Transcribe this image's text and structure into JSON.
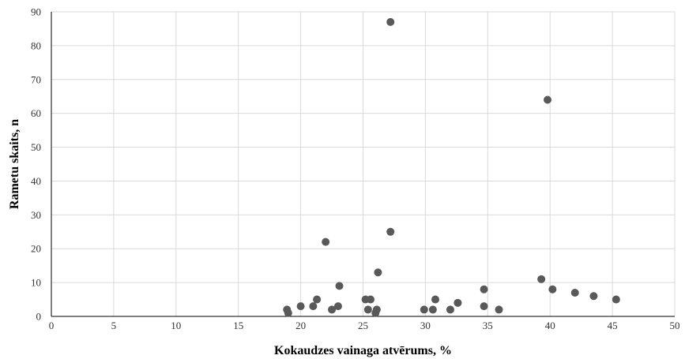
{
  "chart_data": {
    "type": "scatter",
    "title": "",
    "xlabel": "Kokaudzes vainaga atvērums, %",
    "ylabel": "Rametu skaits, n",
    "xlim": [
      0,
      50
    ],
    "ylim": [
      0,
      90
    ],
    "x_ticks": [
      0,
      5,
      10,
      15,
      20,
      25,
      30,
      35,
      40,
      45,
      50
    ],
    "y_ticks": [
      0,
      10,
      20,
      30,
      40,
      50,
      60,
      70,
      80,
      90
    ],
    "grid": {
      "vertical": true,
      "horizontal": true
    },
    "legend": "none",
    "marker_color": "#595959",
    "points": [
      {
        "x": 18.9,
        "y": 2
      },
      {
        "x": 19.0,
        "y": 1
      },
      {
        "x": 20.0,
        "y": 3
      },
      {
        "x": 21.0,
        "y": 3
      },
      {
        "x": 21.3,
        "y": 5
      },
      {
        "x": 22.0,
        "y": 22
      },
      {
        "x": 22.5,
        "y": 2
      },
      {
        "x": 23.0,
        "y": 3
      },
      {
        "x": 23.1,
        "y": 9
      },
      {
        "x": 25.2,
        "y": 5
      },
      {
        "x": 25.4,
        "y": 2
      },
      {
        "x": 25.6,
        "y": 5
      },
      {
        "x": 26.0,
        "y": 1
      },
      {
        "x": 26.1,
        "y": 2
      },
      {
        "x": 26.2,
        "y": 13
      },
      {
        "x": 27.2,
        "y": 87
      },
      {
        "x": 27.2,
        "y": 25
      },
      {
        "x": 29.9,
        "y": 2
      },
      {
        "x": 30.6,
        "y": 2
      },
      {
        "x": 30.8,
        "y": 5
      },
      {
        "x": 32.0,
        "y": 2
      },
      {
        "x": 32.6,
        "y": 4
      },
      {
        "x": 34.7,
        "y": 3
      },
      {
        "x": 34.7,
        "y": 8
      },
      {
        "x": 35.9,
        "y": 2
      },
      {
        "x": 39.3,
        "y": 11
      },
      {
        "x": 39.8,
        "y": 64
      },
      {
        "x": 40.2,
        "y": 8
      },
      {
        "x": 42.0,
        "y": 7
      },
      {
        "x": 43.5,
        "y": 6
      },
      {
        "x": 45.3,
        "y": 5
      }
    ]
  }
}
